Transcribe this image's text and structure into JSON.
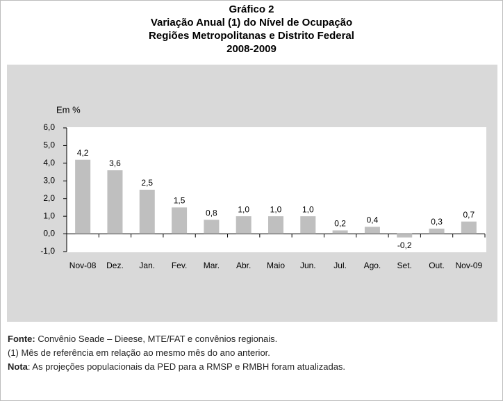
{
  "chart_data": {
    "type": "bar",
    "title": "Gráfico 2",
    "subtitle": [
      "Variação Anual (1) do Nível de Ocupação",
      "Regiões Metropolitanas e Distrito Federal",
      "2008-2009"
    ],
    "ylabel": "Em %",
    "categories": [
      "Nov-08",
      "Dez.",
      "Jan.",
      "Fev.",
      "Mar.",
      "Abr.",
      "Maio",
      "Jun.",
      "Jul.",
      "Ago.",
      "Set.",
      "Out.",
      "Nov-09"
    ],
    "values": [
      4.2,
      3.6,
      2.5,
      1.5,
      0.8,
      1.0,
      1.0,
      1.0,
      0.2,
      0.4,
      -0.2,
      0.3,
      0.7
    ],
    "value_labels": [
      "4,2",
      "3,6",
      "2,5",
      "1,5",
      "0,8",
      "1,0",
      "1,0",
      "1,0",
      "0,2",
      "0,4",
      "-0,2",
      "0,3",
      "0,7"
    ],
    "color": "#bfbfbf",
    "ylim": [
      -1,
      6
    ],
    "yticks": [
      {
        "value": -1,
        "label": "-1,0"
      },
      {
        "value": 0,
        "label": "0,0"
      },
      {
        "value": 1,
        "label": "1,0"
      },
      {
        "value": 2,
        "label": "2,0"
      },
      {
        "value": 3,
        "label": "3,0"
      },
      {
        "value": 4,
        "label": "4,0"
      },
      {
        "value": 5,
        "label": "5,0"
      },
      {
        "value": 6,
        "label": "6,0"
      }
    ],
    "grid": false
  },
  "footer": {
    "source": {
      "label": "Fonte:",
      "text": " Convênio Seade – Dieese, MTE/FAT e convênios regionais."
    },
    "footnote": "(1) Mês de referência em relação ao mesmo mês do ano anterior.",
    "note": {
      "label": "Nota",
      "text": ": As projeções populacionais da PED para a RMSP e RMBH foram atualizadas."
    }
  }
}
